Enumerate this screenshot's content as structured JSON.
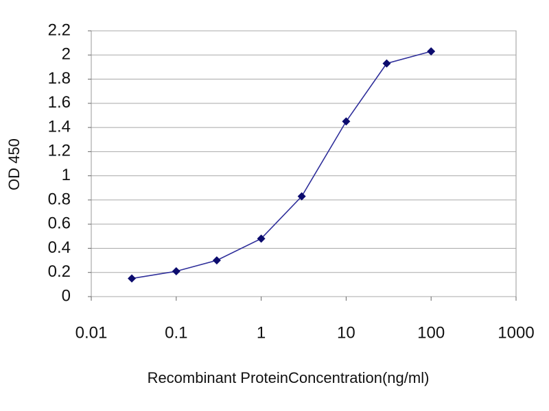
{
  "chart_data": {
    "type": "line",
    "x_label": "Recombinant ProteinConcentration(ng/ml)",
    "y_label": "OD 450",
    "x": [
      0.03,
      0.1,
      0.3,
      1,
      3,
      10,
      30,
      100
    ],
    "values": [
      0.15,
      0.21,
      0.3,
      0.48,
      0.83,
      1.45,
      1.93,
      2.03
    ],
    "color": "#2e2e9a",
    "marker_color": "#0c0c6e",
    "xscale": "log",
    "xlim": [
      0.01,
      1000
    ],
    "xticks": [
      0.01,
      0.1,
      1,
      10,
      100,
      1000
    ],
    "ylim": [
      0,
      2.2
    ],
    "yticks": [
      0,
      0.2,
      0.4,
      0.6,
      0.8,
      1,
      1.2,
      1.4,
      1.6,
      1.8,
      2,
      2.2
    ],
    "grid": true
  }
}
